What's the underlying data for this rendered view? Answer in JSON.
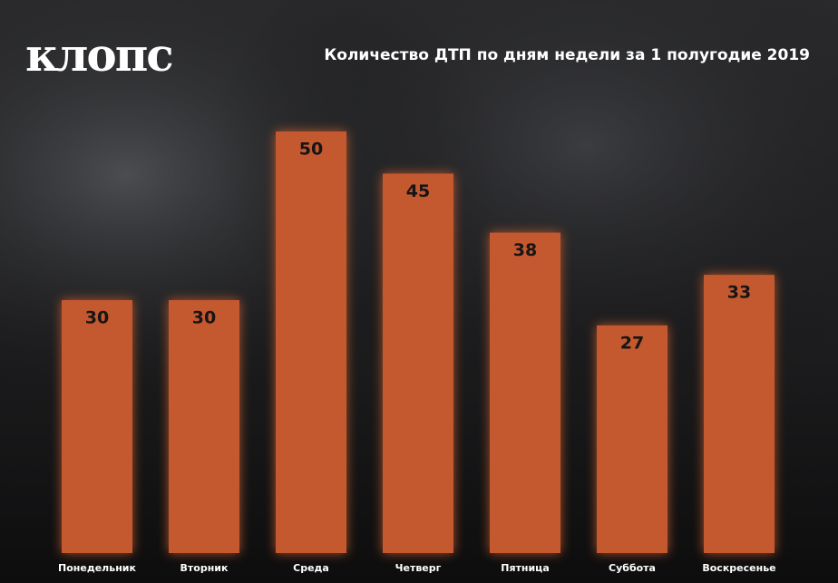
{
  "logo": "клопс",
  "chart_data": {
    "type": "bar",
    "title": "Количество ДТП по дням недели за 1 полугодие 2019",
    "categories": [
      "Понедельник",
      "Вторник",
      "Среда",
      "Четверг",
      "Пятница",
      "Суббота",
      "Воскресенье"
    ],
    "values": [
      30,
      30,
      50,
      45,
      38,
      27,
      33
    ],
    "color": "#c4582f"
  }
}
